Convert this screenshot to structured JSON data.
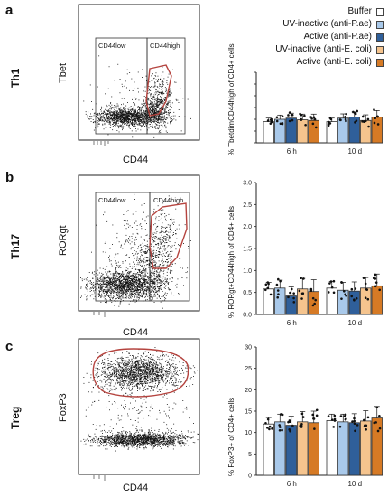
{
  "panels": [
    {
      "letter": "a",
      "row_label": "Th1",
      "marker": "Tbet",
      "xlabel": "CD44",
      "gate_low": "CD44low",
      "gate_high": "CD44high",
      "ylabel_html": "% Tbet<sup>dim</sup>CD44<sup>high</sup> of CD4<sup>+</sup> cells",
      "ylabel_plain": "% TbetdimCD44high of CD4+ cells"
    },
    {
      "letter": "b",
      "row_label": "Th17",
      "marker": "RORgt",
      "xlabel": "CD44",
      "gate_low": "CD44low",
      "gate_high": "CD44high",
      "ylabel_plain": "% RORgt+CD44high of CD4+ cells"
    },
    {
      "letter": "c",
      "row_label": "Treg",
      "marker": "FoxP3",
      "xlabel": "CD44",
      "ylabel_plain": "% FoxP3+ of CD4+ cells"
    }
  ],
  "legend": [
    {
      "label": "Buffer",
      "color": "#ffffff"
    },
    {
      "label": "UV-inactive (anti-P.ae)",
      "color": "#a9c9ea"
    },
    {
      "label": "Active (anti-P.ae)",
      "color": "#2f5f9a"
    },
    {
      "label": "UV-inactive (anti-E. coli)",
      "color": "#f5c48e"
    },
    {
      "label": "Active (anti-E. coli)",
      "color": "#d67a25"
    }
  ],
  "colors": {
    "gate": "#b5443f",
    "dots": "#111111"
  },
  "chart_data": [
    {
      "type": "bar",
      "categories": [
        "6 h",
        "10 d"
      ],
      "ylabel": "% TbetdimCD44high of CD4+ cells",
      "yticks": [],
      "ylim": [
        0,
        3
      ],
      "series": [
        {
          "name": "Buffer",
          "values": [
            0.9,
            0.9
          ]
        },
        {
          "name": "UV-inactive (anti-P.ae)",
          "values": [
            1.0,
            1.05
          ]
        },
        {
          "name": "Active (anti-P.ae)",
          "values": [
            1.05,
            1.1
          ]
        },
        {
          "name": "UV-inactive (anti-E. coli)",
          "values": [
            0.98,
            0.95
          ]
        },
        {
          "name": "Active (anti-E. coli)",
          "values": [
            0.95,
            1.1
          ]
        }
      ]
    },
    {
      "type": "bar",
      "categories": [
        "6 h",
        "10 d"
      ],
      "ylabel": "% RORgt+CD44high of CD4+ cells",
      "yticks": [
        "0.0",
        "0.5",
        "1.0",
        "1.5",
        "2.0",
        "2.5",
        "3.0"
      ],
      "ylim": [
        0,
        3
      ],
      "series": [
        {
          "name": "Buffer",
          "values": [
            0.58,
            0.6
          ]
        },
        {
          "name": "UV-inactive (anti-P.ae)",
          "values": [
            0.6,
            0.55
          ]
        },
        {
          "name": "Active (anti-P.ae)",
          "values": [
            0.42,
            0.53
          ]
        },
        {
          "name": "UV-inactive (anti-E. coli)",
          "values": [
            0.58,
            0.6
          ]
        },
        {
          "name": "Active (anti-E. coli)",
          "values": [
            0.52,
            0.65
          ]
        }
      ]
    },
    {
      "type": "bar",
      "categories": [
        "6 h",
        "10 d"
      ],
      "ylabel": "% FoxP3+ of CD4+ cells",
      "yticks": [
        "0",
        "5",
        "10",
        "15",
        "20",
        "25",
        "30"
      ],
      "ylim": [
        0,
        30
      ],
      "series": [
        {
          "name": "Buffer",
          "values": [
            12,
            12.8
          ]
        },
        {
          "name": "UV-inactive (anti-P.ae)",
          "values": [
            12.5,
            12.5
          ]
        },
        {
          "name": "Active (anti-P.ae)",
          "values": [
            11.7,
            12.3
          ]
        },
        {
          "name": "UV-inactive (anti-E. coli)",
          "values": [
            12.5,
            12.7
          ]
        },
        {
          "name": "Active (anti-E. coli)",
          "values": [
            12.3,
            13.4
          ]
        }
      ]
    }
  ]
}
